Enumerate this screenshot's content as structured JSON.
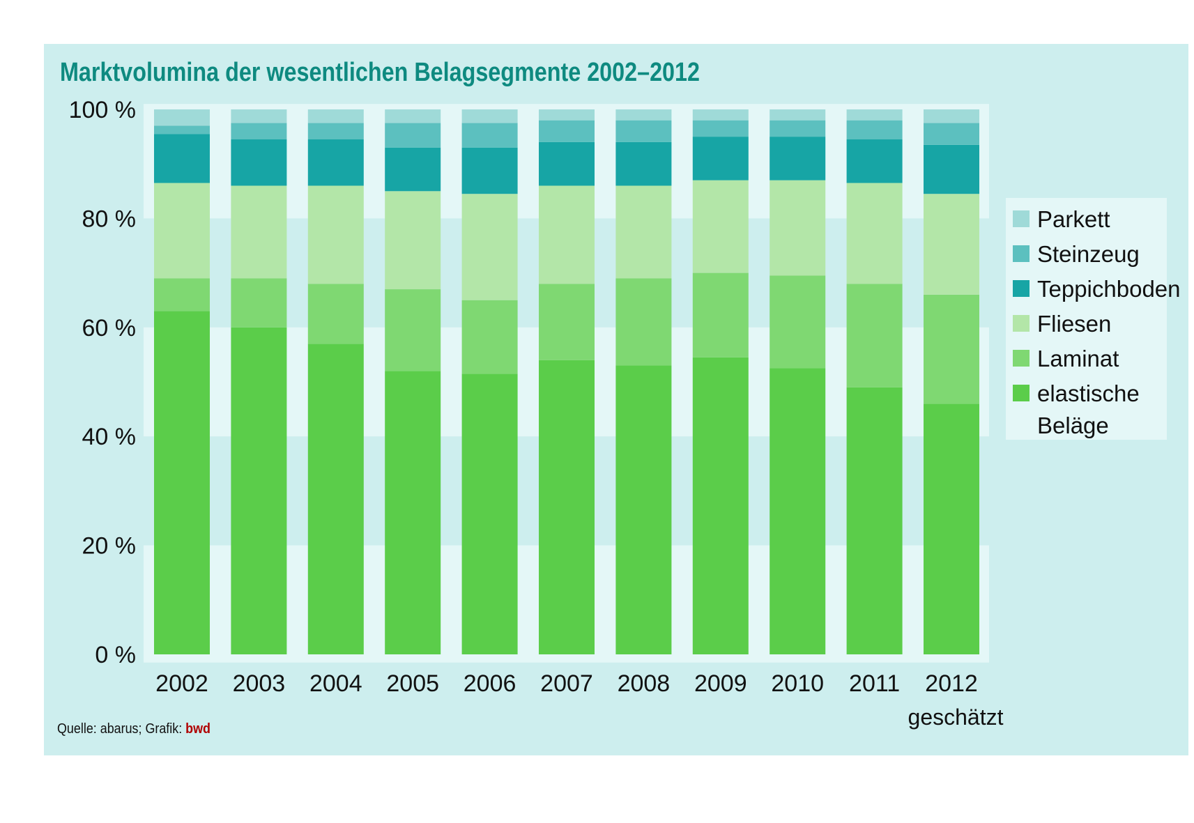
{
  "chart_data": {
    "type": "bar",
    "stacked": true,
    "title": "Marktvolumina der wesentlichen Belagsegmente 2002–2012",
    "categories": [
      "2002",
      "2003",
      "2004",
      "2005",
      "2006",
      "2007",
      "2008",
      "2009",
      "2010",
      "2011",
      "2012"
    ],
    "category_sublabels": [
      "",
      "",
      "",
      "",
      "",
      "",
      "",
      "",
      "",
      "",
      "geschätzt"
    ],
    "ylim": [
      0,
      100
    ],
    "yticks": [
      "0 %",
      "20 %",
      "40 %",
      "60 %",
      "80 %",
      "100 %"
    ],
    "ytick_values": [
      0,
      20,
      40,
      60,
      80,
      100
    ],
    "grid": "alternating horizontal bands",
    "legend_placement": "right",
    "series": [
      {
        "name": "elastische Beläge",
        "legend_lines": [
          "elastische",
          "Beläge"
        ],
        "color": "#5bcd4a",
        "values": [
          63,
          60,
          57,
          52,
          51.5,
          54,
          53,
          54.5,
          52.5,
          49,
          46
        ]
      },
      {
        "name": "Laminat",
        "legend_lines": [
          "Laminat"
        ],
        "color": "#7fd872",
        "values": [
          6,
          9,
          11,
          15,
          13.5,
          14,
          16,
          15.5,
          17,
          19,
          20
        ]
      },
      {
        "name": "Fliesen",
        "legend_lines": [
          "Fliesen"
        ],
        "color": "#b3e6a8",
        "values": [
          17.5,
          17,
          18,
          18,
          19.5,
          18,
          17,
          17,
          17.5,
          18.5,
          18.5
        ]
      },
      {
        "name": "Teppichboden",
        "legend_lines": [
          "Teppichboden"
        ],
        "color": "#17a5a5",
        "values": [
          9,
          8.5,
          8.5,
          8,
          8.5,
          8,
          8,
          8,
          8,
          8,
          9
        ]
      },
      {
        "name": "Steinzeug",
        "legend_lines": [
          "Steinzeug"
        ],
        "color": "#5cc0bf",
        "values": [
          1.5,
          3,
          3,
          4.5,
          4.5,
          4,
          4,
          3,
          3,
          3.5,
          4
        ]
      },
      {
        "name": "Parkett",
        "legend_lines": [
          "Parkett"
        ],
        "color": "#9fdad8",
        "values": [
          3,
          2.5,
          2.5,
          2.5,
          2.5,
          2,
          2,
          2,
          2,
          2,
          2.5
        ]
      }
    ],
    "legend_order": [
      "Parkett",
      "Steinzeug",
      "Teppichboden",
      "Fliesen",
      "Laminat",
      "elastische Beläge"
    ]
  },
  "footer": {
    "source": "Quelle: abarus; Grafik: ",
    "brand": "bwd",
    "brand_color": "#b00000"
  },
  "colors": {
    "panel": "#cdeeee",
    "band_light": "#e4f7f7",
    "title": "#0e8a80"
  }
}
